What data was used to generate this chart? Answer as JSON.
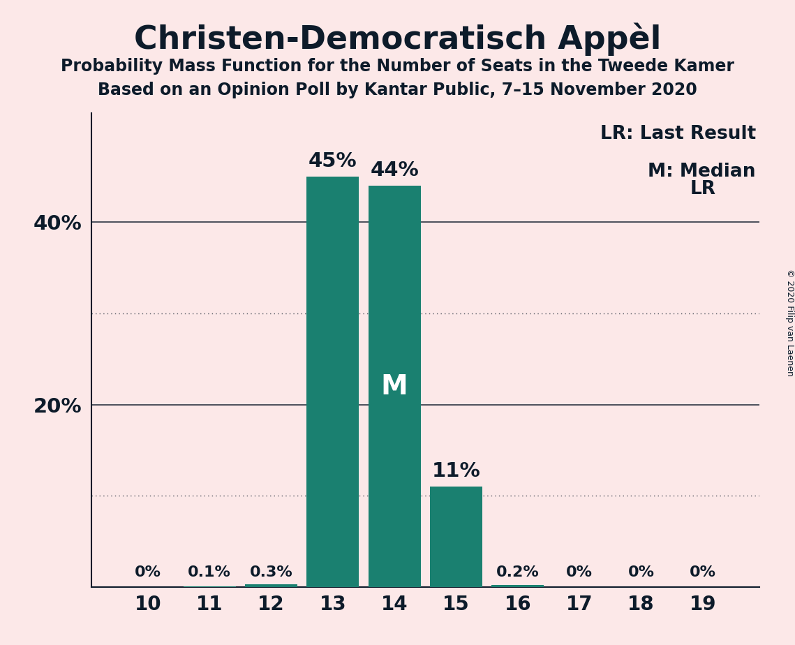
{
  "title": "Christen-Democratisch Appèl",
  "subtitle1": "Probability Mass Function for the Number of Seats in the Tweede Kamer",
  "subtitle2": "Based on an Opinion Poll by Kantar Public, 7–15 November 2020",
  "copyright": "© 2020 Filip van Laenen",
  "legend_lr": "LR: Last Result",
  "legend_m": "M: Median",
  "categories": [
    10,
    11,
    12,
    13,
    14,
    15,
    16,
    17,
    18,
    19
  ],
  "values": [
    0.0,
    0.001,
    0.003,
    0.45,
    0.44,
    0.11,
    0.002,
    0.0,
    0.0,
    0.0
  ],
  "labels": [
    "0%",
    "0.1%",
    "0.3%",
    "45%",
    "44%",
    "11%",
    "0.2%",
    "0%",
    "0%",
    "0%"
  ],
  "bar_color": "#1a8070",
  "background_color": "#fce8e8",
  "text_color": "#0d1b2a",
  "median_seat": 14,
  "last_result_seat": 19,
  "ylim": [
    0,
    0.52
  ],
  "solid_lines": [
    0.2,
    0.4
  ],
  "dotted_lines": [
    0.1,
    0.3
  ],
  "ylabel_ticks": [
    0.2,
    0.4
  ],
  "ylabel_labels": [
    "20%",
    "40%"
  ]
}
